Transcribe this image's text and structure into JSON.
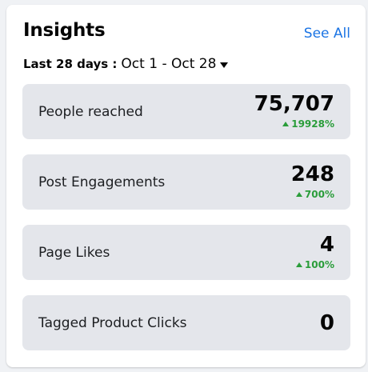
{
  "card": {
    "title": "Insights",
    "see_all_label": "See All"
  },
  "date_range": {
    "label": "Last 28 days :",
    "value": "Oct 1 - Oct 28",
    "dropdown_icon": "caret-down-icon"
  },
  "metrics": [
    {
      "name": "People reached",
      "value": "75,707",
      "change": "19928%",
      "trend": "up"
    },
    {
      "name": "Post Engagements",
      "value": "248",
      "change": "700%",
      "trend": "up"
    },
    {
      "name": "Page Likes",
      "value": "4",
      "change": "100%",
      "trend": "up"
    },
    {
      "name": "Tagged Product Clicks",
      "value": "0"
    }
  ],
  "colors": {
    "accent": "#1b74e4",
    "positive": "#2a9d3a",
    "tile_bg": "#e4e6eb"
  }
}
